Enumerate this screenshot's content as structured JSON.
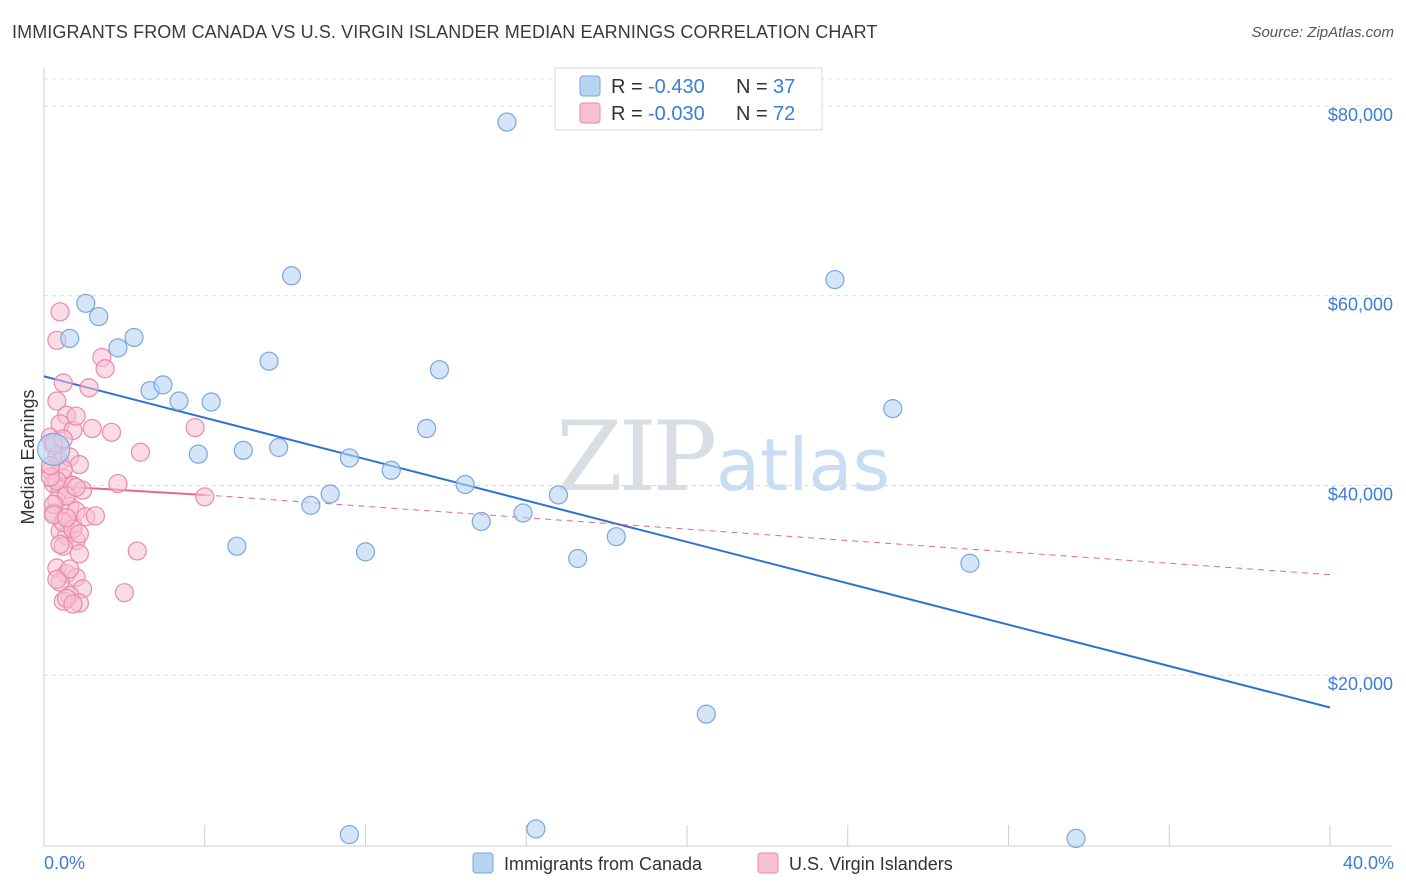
{
  "title": "IMMIGRANTS FROM CANADA VS U.S. VIRGIN ISLANDER MEDIAN EARNINGS CORRELATION CHART",
  "source": "Source: ZipAtlas.com",
  "watermark": {
    "zip": "ZIP",
    "atlas": "atlas"
  },
  "colors": {
    "blue_fill": "#b9d3f3",
    "blue_stroke": "#7aa6de",
    "blue_line": "#2f72d0",
    "pink_fill": "#f7c0d1",
    "pink_stroke": "#e98aaa",
    "pink_line": "#e8678f",
    "accent_text": "#3b7dd8",
    "grid": "#dcdcdc"
  },
  "legend": {
    "rows": [
      {
        "r_label": "R = ",
        "r_value": "-0.430",
        "n_label": "N = ",
        "n_value": "37"
      },
      {
        "r_label": "R = ",
        "r_value": "-0.030",
        "n_label": "N = ",
        "n_value": "72"
      }
    ]
  },
  "bottom_legend": [
    "Immigrants from Canada",
    "U.S. Virgin Islanders"
  ],
  "chart_data": {
    "type": "scatter",
    "title": "IMMIGRANTS FROM CANADA VS U.S. VIRGIN ISLANDER MEDIAN EARNINGS CORRELATION CHART",
    "xlabel": "",
    "ylabel": "Median Earnings",
    "xlim": [
      0,
      40
    ],
    "ylim": [
      2000,
      84000
    ],
    "x_tick_labels": [
      "0.0%",
      "40.0%"
    ],
    "y_ticks": [
      20000,
      40000,
      60000,
      80000
    ],
    "y_tick_labels": [
      "$20,000",
      "$40,000",
      "$60,000",
      "$80,000"
    ],
    "series": [
      {
        "name": "Immigrants from Canada",
        "color": "blue",
        "points": [
          [
            0.3,
            43800
          ],
          [
            1.3,
            59200
          ],
          [
            1.7,
            57800
          ],
          [
            0.8,
            55500
          ],
          [
            2.3,
            54500
          ],
          [
            2.8,
            55600
          ],
          [
            3.3,
            50000
          ],
          [
            3.7,
            50600
          ],
          [
            4.2,
            48900
          ],
          [
            4.8,
            43300
          ],
          [
            5.2,
            48800
          ],
          [
            6.2,
            43700
          ],
          [
            6.0,
            33600
          ],
          [
            7.0,
            53100
          ],
          [
            7.3,
            44000
          ],
          [
            7.7,
            62100
          ],
          [
            8.3,
            37900
          ],
          [
            8.9,
            39100
          ],
          [
            9.5,
            42900
          ],
          [
            10.0,
            33000
          ],
          [
            10.8,
            41600
          ],
          [
            11.9,
            46000
          ],
          [
            12.3,
            52200
          ],
          [
            13.1,
            40100
          ],
          [
            13.6,
            36200
          ],
          [
            14.4,
            78300
          ],
          [
            14.9,
            37100
          ],
          [
            16.0,
            39000
          ],
          [
            16.6,
            32300
          ],
          [
            17.8,
            34600
          ],
          [
            20.6,
            15900
          ],
          [
            24.6,
            61700
          ],
          [
            26.4,
            48100
          ],
          [
            28.8,
            31800
          ],
          [
            9.5,
            3200
          ],
          [
            15.3,
            3800
          ],
          [
            32.1,
            2800
          ]
        ],
        "trend": {
          "x": [
            0,
            40
          ],
          "y": [
            51500,
            16600
          ]
        }
      },
      {
        "name": "U.S. Virgin Islanders",
        "color": "pink",
        "points": [
          [
            0.2,
            45100
          ],
          [
            0.3,
            44200
          ],
          [
            0.4,
            43100
          ],
          [
            0.5,
            42500
          ],
          [
            0.2,
            41600
          ],
          [
            0.6,
            40800
          ],
          [
            0.3,
            40200
          ],
          [
            0.5,
            39600
          ],
          [
            0.7,
            39100
          ],
          [
            0.4,
            38400
          ],
          [
            0.8,
            37800
          ],
          [
            0.3,
            37100
          ],
          [
            0.6,
            36200
          ],
          [
            0.9,
            35800
          ],
          [
            0.5,
            35200
          ],
          [
            0.7,
            34700
          ],
          [
            1.0,
            34200
          ],
          [
            0.6,
            33600
          ],
          [
            0.4,
            48900
          ],
          [
            0.7,
            47400
          ],
          [
            0.5,
            46500
          ],
          [
            0.9,
            45800
          ],
          [
            0.3,
            44500
          ],
          [
            0.8,
            43000
          ],
          [
            1.1,
            42200
          ],
          [
            0.6,
            41700
          ],
          [
            0.4,
            40500
          ],
          [
            0.9,
            40000
          ],
          [
            1.2,
            39500
          ],
          [
            0.7,
            38900
          ],
          [
            0.3,
            38000
          ],
          [
            1.0,
            37300
          ],
          [
            1.3,
            36700
          ],
          [
            0.6,
            36100
          ],
          [
            0.9,
            35400
          ],
          [
            1.1,
            34900
          ],
          [
            0.4,
            31300
          ],
          [
            0.7,
            30700
          ],
          [
            1.0,
            30300
          ],
          [
            0.5,
            29800
          ],
          [
            1.2,
            29100
          ],
          [
            0.8,
            28400
          ],
          [
            0.6,
            27800
          ],
          [
            1.1,
            27600
          ],
          [
            0.7,
            28100
          ],
          [
            0.9,
            27500
          ],
          [
            0.4,
            55300
          ],
          [
            0.6,
            50800
          ],
          [
            0.5,
            58300
          ],
          [
            1.0,
            47300
          ],
          [
            1.4,
            50300
          ],
          [
            1.5,
            46000
          ],
          [
            1.8,
            53500
          ],
          [
            2.1,
            45600
          ],
          [
            1.6,
            36800
          ],
          [
            1.9,
            52300
          ],
          [
            2.3,
            40200
          ],
          [
            2.5,
            28700
          ],
          [
            2.9,
            33100
          ],
          [
            3.0,
            43500
          ],
          [
            4.7,
            46100
          ],
          [
            5.0,
            38800
          ],
          [
            0.2,
            40900
          ],
          [
            0.3,
            36900
          ],
          [
            0.5,
            33800
          ],
          [
            0.8,
            31200
          ],
          [
            1.1,
            32800
          ],
          [
            0.4,
            30100
          ],
          [
            0.7,
            36600
          ],
          [
            1.0,
            39800
          ],
          [
            0.2,
            42100
          ],
          [
            0.6,
            44900
          ]
        ],
        "trend_solid": {
          "x": [
            0,
            5
          ],
          "y": [
            40000,
            39000
          ]
        },
        "trend_dashed": {
          "x": [
            5,
            40
          ],
          "y": [
            39000,
            30600
          ]
        }
      }
    ]
  }
}
